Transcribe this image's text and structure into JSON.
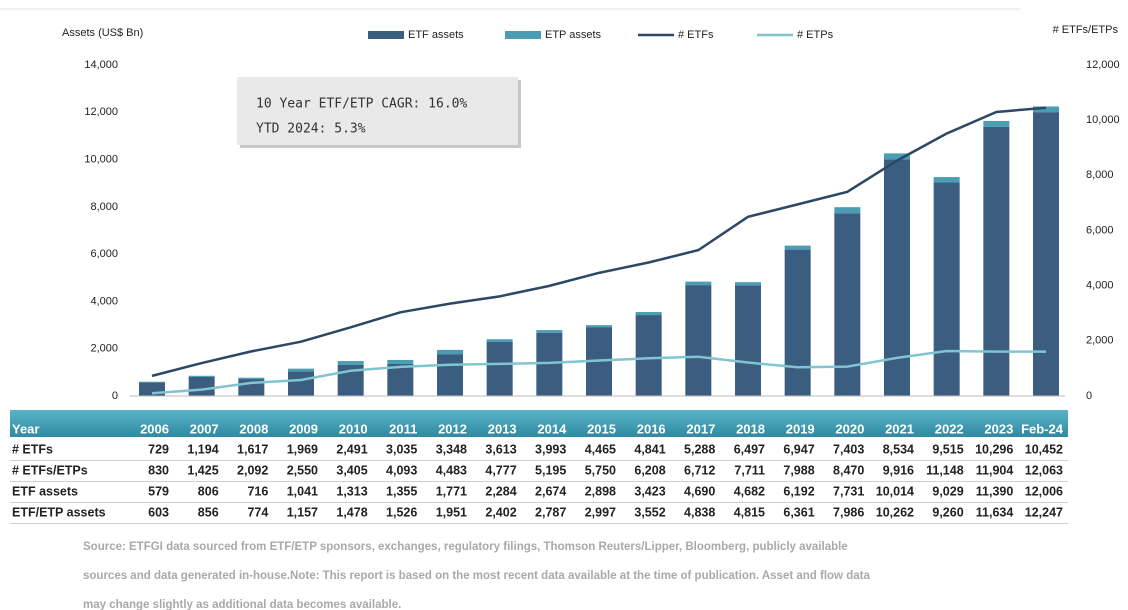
{
  "chart_data": {
    "type": "bar",
    "y_label": "Assets (US$ Bn)",
    "y2_label": "# ETFs/ETPs",
    "annotations": [
      "10 Year ETF/ETP CAGR: 16.0%",
      "YTD 2024: 5.3%"
    ],
    "categories": [
      "2006",
      "2007",
      "2008",
      "2009",
      "2010",
      "2011",
      "2012",
      "2013",
      "2014",
      "2015",
      "2016",
      "2017",
      "2018",
      "2019",
      "2020",
      "2021",
      "2022",
      "2023",
      "Feb-24"
    ],
    "series": [
      {
        "name": "ETF assets",
        "type": "bar",
        "color": "#3b5d80",
        "values": [
          579,
          806,
          716,
          1041,
          1313,
          1355,
          1771,
          2284,
          2674,
          2898,
          3423,
          4690,
          4682,
          6192,
          7731,
          10014,
          9029,
          11390,
          12006
        ]
      },
      {
        "name": "ETP assets",
        "type": "bar",
        "color": "#4a9db3",
        "values": [
          24,
          50,
          58,
          116,
          165,
          171,
          180,
          118,
          113,
          99,
          129,
          148,
          133,
          169,
          255,
          248,
          231,
          244,
          241
        ]
      },
      {
        "name": "# ETFs",
        "type": "line",
        "axis": "y2",
        "color": "#2b4864",
        "values": [
          729,
          1194,
          1617,
          1969,
          2491,
          3035,
          3348,
          3613,
          3993,
          4465,
          4841,
          5288,
          6497,
          6947,
          7403,
          8534,
          9515,
          10296,
          10452
        ]
      },
      {
        "name": "# ETPs",
        "type": "line",
        "axis": "y2",
        "color": "#80c5d0",
        "values": [
          101,
          231,
          475,
          581,
          914,
          1058,
          1135,
          1164,
          1202,
          1285,
          1367,
          1424,
          1214,
          1041,
          1067,
          1382,
          1633,
          1608,
          1611
        ]
      }
    ],
    "ylim": [
      0,
      14000
    ],
    "yticks": [
      0,
      {
        "value": 2000,
        "label": "2,000"
      },
      {
        "value": 4000,
        "label": "4,000"
      },
      {
        "value": 6000,
        "label": "6,000"
      },
      {
        "value": 8000,
        "label": "8,000"
      },
      {
        "value": 10000,
        "label": "10,000"
      },
      {
        "value": 12000,
        "label": "12,000"
      },
      {
        "value": 14000,
        "label": "14,000"
      }
    ],
    "y2lim": [
      0,
      12000
    ],
    "y2ticks": [
      0,
      {
        "value": 2000,
        "label": "2,000"
      },
      {
        "value": 4000,
        "label": "4,000"
      },
      {
        "value": 6000,
        "label": "6,000"
      },
      {
        "value": 8000,
        "label": "8,000"
      },
      {
        "value": 10000,
        "label": "10,000"
      },
      {
        "value": 12000,
        "label": "12,000"
      }
    ],
    "grid": false
  },
  "table": {
    "header": "Year",
    "rows": [
      {
        "label": "# ETFs",
        "values": [
          "729",
          "1,194",
          "1,617",
          "1,969",
          "2,491",
          "3,035",
          "3,348",
          "3,613",
          "3,993",
          "4,465",
          "4,841",
          "5,288",
          "6,497",
          "6,947",
          "7,403",
          "8,534",
          "9,515",
          "10,296",
          "10,452"
        ]
      },
      {
        "label": "# ETFs/ETPs",
        "values": [
          "830",
          "1,425",
          "2,092",
          "2,550",
          "3,405",
          "4,093",
          "4,483",
          "4,777",
          "5,195",
          "5,750",
          "6,208",
          "6,712",
          "7,711",
          "7,988",
          "8,470",
          "9,916",
          "11,148",
          "11,904",
          "12,063"
        ]
      },
      {
        "label": "ETF assets",
        "values": [
          "579",
          "806",
          "716",
          "1,041",
          "1,313",
          "1,355",
          "1,771",
          "2,284",
          "2,674",
          "2,898",
          "3,423",
          "4,690",
          "4,682",
          "6,192",
          "7,731",
          "10,014",
          "9,029",
          "11,390",
          "12,006"
        ]
      },
      {
        "label": "ETF/ETP assets",
        "values": [
          "603",
          "856",
          "774",
          "1,157",
          "1,478",
          "1,526",
          "1,951",
          "2,402",
          "2,787",
          "2,997",
          "3,552",
          "4,838",
          "4,815",
          "6,361",
          "7,986",
          "10,262",
          "9,260",
          "11,634",
          "12,247"
        ]
      }
    ]
  },
  "source": [
    "Source: ETFGI data sourced from ETF/ETP sponsors, exchanges, regulatory filings, Thomson Reuters/Lipper, Bloomberg, publicly available",
    "sources and data generated in-house.Note: This report is based on the most recent data available at the time of publication. Asset and flow data",
    "may change slightly as additional data becomes available."
  ]
}
